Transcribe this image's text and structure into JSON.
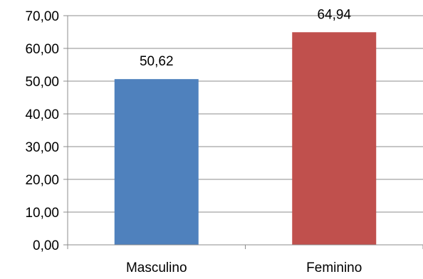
{
  "chart_data": {
    "type": "bar",
    "categories": [
      "Masculino",
      "Feminino"
    ],
    "values": [
      50.62,
      64.94
    ],
    "data_labels": [
      "50,62",
      "64,94"
    ],
    "colors": [
      "#4f81bd",
      "#c0504d"
    ],
    "ylim": [
      0,
      70
    ],
    "y_ticks": [
      0,
      10,
      20,
      30,
      40,
      50,
      60,
      70
    ],
    "y_tick_labels": [
      "0,00",
      "10,00",
      "20,00",
      "30,00",
      "40,00",
      "50,00",
      "60,00",
      "70,00"
    ],
    "grid": true,
    "legend": "none",
    "title": "",
    "xlabel": "",
    "ylabel": ""
  }
}
